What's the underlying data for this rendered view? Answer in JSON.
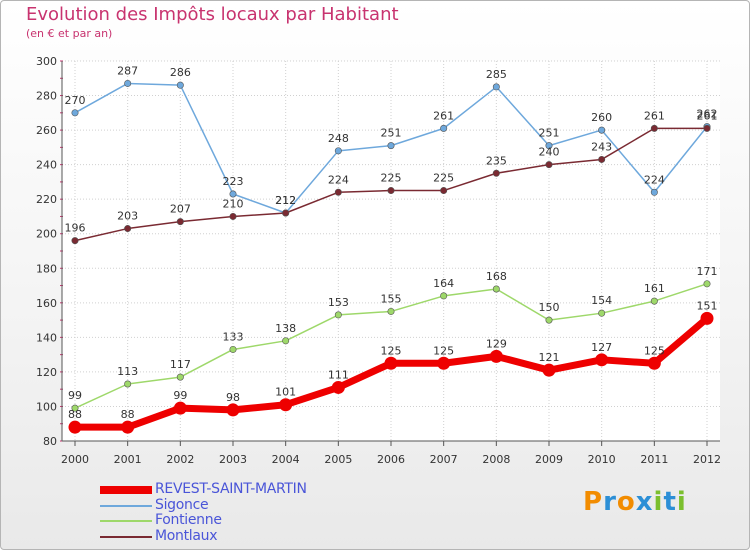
{
  "chart_data": {
    "type": "line",
    "title": "Evolution des Impôts locaux par Habitant",
    "subtitle": "(en € et par an)",
    "x": [
      "2000",
      "2001",
      "2002",
      "2003",
      "2004",
      "2005",
      "2006",
      "2007",
      "2008",
      "2009",
      "2010",
      "2011",
      "2012"
    ],
    "ylim": [
      80,
      300
    ],
    "yticks": [
      80,
      100,
      120,
      140,
      160,
      180,
      200,
      220,
      240,
      260,
      280,
      300
    ],
    "grid": true,
    "legend_position": "bottom-left",
    "series": [
      {
        "name": "REVEST-SAINT-MARTIN",
        "color": "#ee0000",
        "values": [
          88,
          88,
          99,
          98,
          101,
          111,
          125,
          125,
          129,
          121,
          127,
          125,
          151
        ]
      },
      {
        "name": "Sigonce",
        "color": "#6ea8dc",
        "values": [
          270,
          287,
          286,
          223,
          212,
          248,
          251,
          261,
          285,
          251,
          260,
          224,
          262
        ]
      },
      {
        "name": "Fontienne",
        "color": "#9ed86a",
        "values": [
          99,
          113,
          117,
          133,
          138,
          153,
          155,
          164,
          168,
          150,
          154,
          161,
          171
        ]
      },
      {
        "name": "Montlaux",
        "color": "#7a2a32",
        "values": [
          196,
          203,
          207,
          210,
          212,
          224,
          225,
          225,
          235,
          240,
          243,
          261,
          261
        ]
      }
    ]
  },
  "logo": {
    "text": "Proxiti",
    "letters": [
      "P",
      "r",
      "o",
      "x",
      "i",
      "t",
      "i"
    ],
    "colors": [
      "#f28c00",
      "#2c8fd6",
      "#f28c00",
      "#2c8fd6",
      "#7bbf2e",
      "#2c8fd6",
      "#7bbf2e"
    ]
  }
}
